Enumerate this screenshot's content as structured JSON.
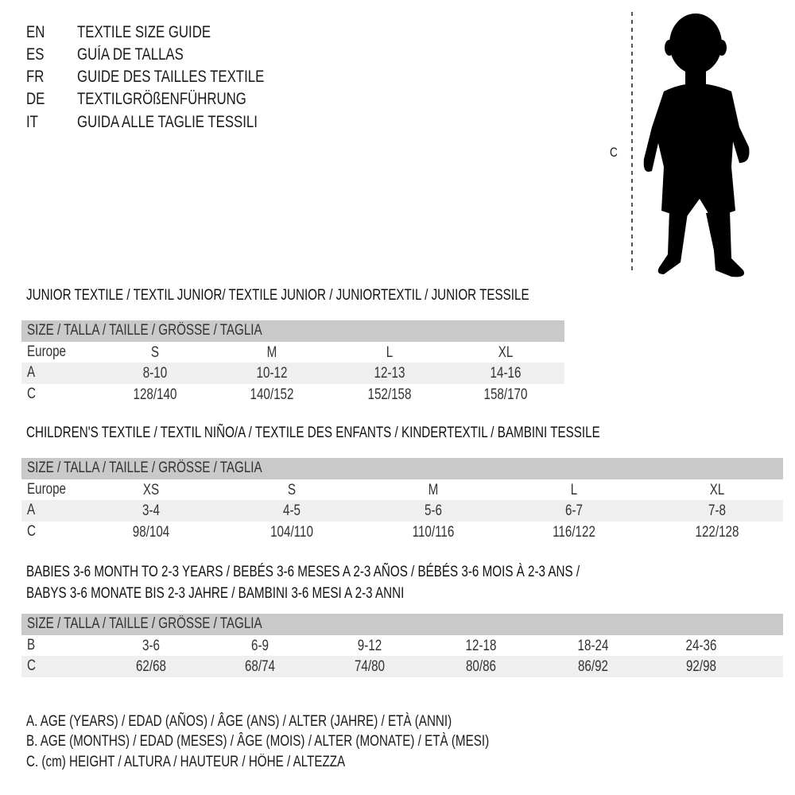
{
  "languages": [
    {
      "code": "EN",
      "text": "TEXTILE SIZE GUIDE"
    },
    {
      "code": "ES",
      "text": "GUÍA DE TALLAS"
    },
    {
      "code": "FR",
      "text": "GUIDE DES TAILLES TEXTILE"
    },
    {
      "code": "DE",
      "text": "TEXTILGRÖßENFÜHRUNG"
    },
    {
      "code": "IT",
      "text": "GUIDA ALLE TAGLIE TESSILI"
    }
  ],
  "figure": {
    "measure_label": "C",
    "icon": "child-silhouette-icon"
  },
  "junior": {
    "title": "JUNIOR TEXTILE / TEXTIL JUNIOR/ TEXTILE JUNIOR / JUNIORTEXTIL / JUNIOR TESSILE",
    "header": "SIZE / TALLA / TAILLE / GRÖSSE / TAGLIA",
    "rows": [
      {
        "label": "Europe",
        "cells": [
          "S",
          "M",
          "L",
          "XL"
        ]
      },
      {
        "label": "A",
        "cells": [
          "8-10",
          "10-12",
          "12-13",
          "14-16"
        ]
      },
      {
        "label": "C",
        "cells": [
          "128/140",
          "140/152",
          "152/158",
          "158/170"
        ]
      }
    ]
  },
  "children": {
    "title": "CHILDREN'S TEXTILE / TEXTIL NIÑO/A / TEXTILE DES ENFANTS / KINDERTEXTIL / BAMBINI TESSILE",
    "header": "SIZE / TALLA / TAILLE / GRÖSSE / TAGLIA",
    "rows": [
      {
        "label": "Europe",
        "cells": [
          "XS",
          "S",
          "M",
          "L",
          "XL"
        ]
      },
      {
        "label": "A",
        "cells": [
          "3-4",
          "4-5",
          "5-6",
          "6-7",
          "7-8"
        ]
      },
      {
        "label": "C",
        "cells": [
          "98/104",
          "104/110",
          "110/116",
          "116/122",
          "122/128"
        ]
      }
    ]
  },
  "babies": {
    "title_line1": "BABIES 3-6 MONTH TO 2-3 YEARS / BEBÉS 3-6 MESES A 2-3 AÑOS / BÉBÉS 3-6 MOIS À 2-3 ANS /",
    "title_line2": "BABYS 3-6 MONATE BIS 2-3 JAHRE / BAMBINI 3-6 MESI A 2-3 ANNI",
    "header": "SIZE / TALLA / TAILLE / GRÖSSE / TAGLIA",
    "rows": [
      {
        "label": "B",
        "cells": [
          "3-6",
          "6-9",
          "9-12",
          "12-18",
          "18-24",
          "24-36"
        ]
      },
      {
        "label": "C",
        "cells": [
          "62/68",
          "68/74",
          "74/80",
          "80/86",
          "86/92",
          "92/98"
        ]
      }
    ]
  },
  "legend": [
    "A. AGE (YEARS) / EDAD (AÑOS) / ÂGE (ANS) / ALTER (JAHRE) / ETÀ (ANNI)",
    "B. AGE (MONTHS) / EDAD (MESES) / ÂGE (MOIS) / ALTER (MONATE) / ETÀ (MESI)",
    "C. (cm) HEIGHT / ALTURA / HAUTEUR / HÖHE / ALTEZZA"
  ],
  "colors": {
    "header_bg": "#c9c9c9",
    "alt_row_bg": "#efefef",
    "text": "#1a1a1a"
  }
}
